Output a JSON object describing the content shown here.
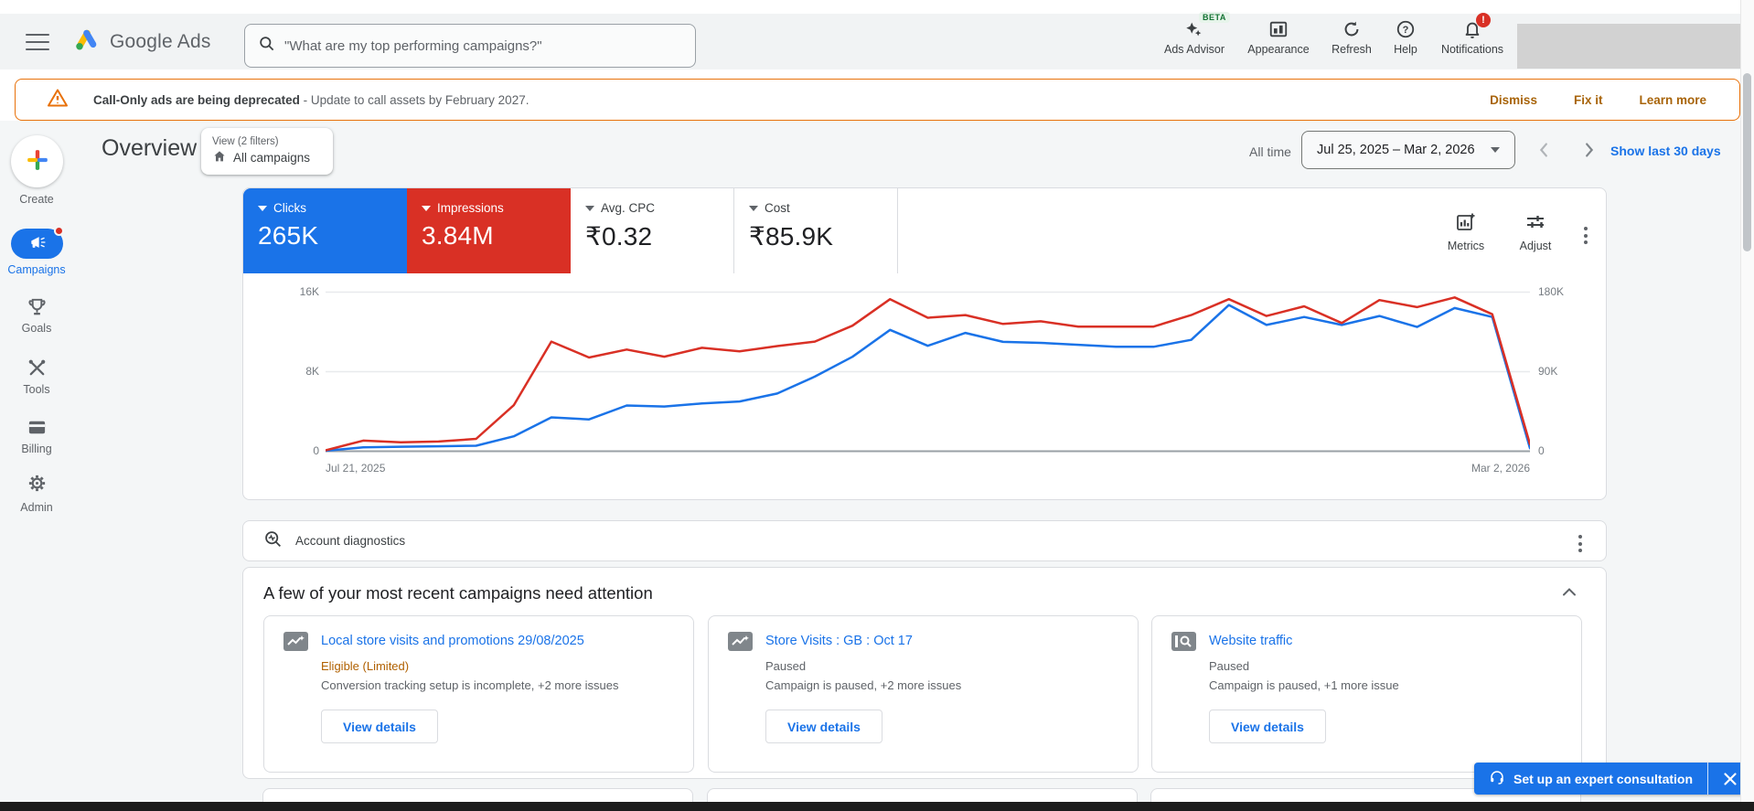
{
  "colors": {
    "accent_blue": "#1a73e8",
    "alert_red": "#d93025",
    "banner_orange": "#e8710a",
    "banner_action": "#a8640a",
    "status_amber": "#b06000",
    "status_gray": "#5f6368"
  },
  "topbar": {
    "logo_text": "Google Ads",
    "search_placeholder": "\"What are my top performing campaigns?\"",
    "ads_advisor": "Ads Advisor",
    "ads_advisor_badge": "BETA",
    "appearance": "Appearance",
    "refresh": "Refresh",
    "help": "Help",
    "notifications": "Notifications",
    "notifications_badge": "!"
  },
  "banner": {
    "title": "Call-Only ads are being deprecated",
    "message": " - Update to call assets by February 2027.",
    "dismiss": "Dismiss",
    "fix_it": "Fix it",
    "learn_more": "Learn more"
  },
  "sidebar": {
    "items": [
      {
        "label": "Create"
      },
      {
        "label": "Campaigns",
        "active": true
      },
      {
        "label": "Goals"
      },
      {
        "label": "Tools"
      },
      {
        "label": "Billing"
      },
      {
        "label": "Admin"
      }
    ]
  },
  "header": {
    "title": "Overview",
    "view_chip_line1": "View (2 filters)",
    "view_chip_line2": "All campaigns",
    "range_label": "All time",
    "date_range": "Jul 25, 2025 – Mar 2, 2026",
    "show_last": "Show last 30 days"
  },
  "scorecards": [
    {
      "label": "Clicks",
      "value": "265K",
      "bg": "#1a73e8",
      "fg": "#ffffff"
    },
    {
      "label": "Impressions",
      "value": "3.84M",
      "bg": "#d93025",
      "fg": "#ffffff"
    },
    {
      "label": "Avg. CPC",
      "value": "₹0.32",
      "bg": "#ffffff",
      "fg": "#202124"
    },
    {
      "label": "Cost",
      "value": "₹85.9K",
      "bg": "#ffffff",
      "fg": "#202124"
    }
  ],
  "chart_toolbar": {
    "metrics": "Metrics",
    "adjust": "Adjust"
  },
  "chart_data": {
    "type": "line",
    "x_start_label": "Jul 21, 2025",
    "x_end_label": "Mar 2, 2026",
    "grid": true,
    "left_axis": {
      "max": 16000,
      "ticks": [
        "0",
        "8K",
        "16K"
      ]
    },
    "right_axis": {
      "max": 180000,
      "ticks": [
        "0",
        "90K",
        "180K"
      ]
    },
    "series": [
      {
        "name": "Clicks",
        "axis": "left",
        "color": "#1a73e8",
        "values": [
          50,
          400,
          450,
          500,
          550,
          1500,
          3400,
          3200,
          4600,
          4500,
          4800,
          5000,
          5800,
          7500,
          9500,
          12200,
          10600,
          11900,
          11000,
          10900,
          10700,
          10500,
          10500,
          11200,
          14700,
          12700,
          13500,
          12700,
          13600,
          12500,
          14400,
          13500,
          300
        ]
      },
      {
        "name": "Impressions",
        "axis": "right",
        "color": "#d93025",
        "values": [
          1000,
          12000,
          10000,
          11000,
          14000,
          52000,
          124000,
          106000,
          115000,
          107000,
          117000,
          113000,
          119000,
          124000,
          142000,
          172000,
          151000,
          154000,
          144000,
          147000,
          141000,
          141000,
          141000,
          154000,
          172000,
          153000,
          164000,
          145000,
          171000,
          163000,
          174000,
          155000,
          8000
        ]
      }
    ]
  },
  "diagnostics": {
    "title": "Account diagnostics"
  },
  "attention": {
    "title": "A few of your most recent campaigns need attention",
    "cards": [
      {
        "name": "Local store visits and promotions 29/08/2025",
        "status": "Eligible (Limited)",
        "status_color": "#b06000",
        "issue": "Conversion tracking setup is incomplete, +2 more issues",
        "cta": "View details"
      },
      {
        "name": "Store Visits : GB : Oct 17",
        "status": "Paused",
        "status_color": "#5f6368",
        "issue": "Campaign is paused, +2 more issues",
        "cta": "View details"
      },
      {
        "name": "Website traffic",
        "status": "Paused",
        "status_color": "#5f6368",
        "issue": "Campaign is paused, +1 more issue",
        "cta": "View details"
      }
    ]
  },
  "consult": {
    "label": "Set up an expert consultation"
  }
}
